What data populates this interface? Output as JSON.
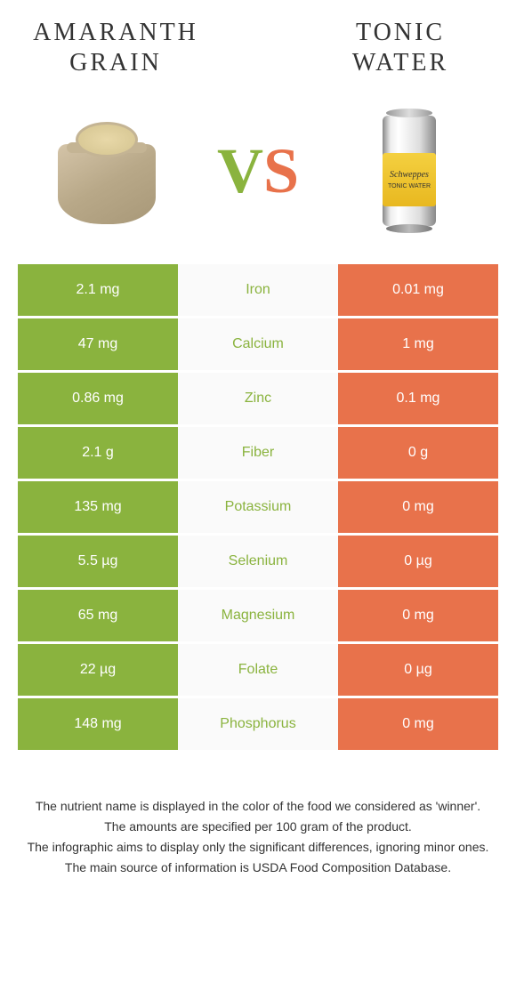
{
  "leftFood": {
    "name": "Amaranth grain",
    "color": "#8ab33e"
  },
  "rightFood": {
    "name": "Tonic water",
    "color": "#e8724b"
  },
  "canBrand": "Schweppes",
  "canText": "TONIC WATER",
  "nutrients": [
    {
      "name": "Iron",
      "left": "2.1 mg",
      "right": "0.01 mg",
      "winner": "left"
    },
    {
      "name": "Calcium",
      "left": "47 mg",
      "right": "1 mg",
      "winner": "left"
    },
    {
      "name": "Zinc",
      "left": "0.86 mg",
      "right": "0.1 mg",
      "winner": "left"
    },
    {
      "name": "Fiber",
      "left": "2.1 g",
      "right": "0 g",
      "winner": "left"
    },
    {
      "name": "Potassium",
      "left": "135 mg",
      "right": "0 mg",
      "winner": "left"
    },
    {
      "name": "Selenium",
      "left": "5.5 µg",
      "right": "0 µg",
      "winner": "left"
    },
    {
      "name": "Magnesium",
      "left": "65 mg",
      "right": "0 mg",
      "winner": "left"
    },
    {
      "name": "Folate",
      "left": "22 µg",
      "right": "0 µg",
      "winner": "left"
    },
    {
      "name": "Phosphorus",
      "left": "148 mg",
      "right": "0 mg",
      "winner": "left"
    }
  ],
  "footer": {
    "line1": "The nutrient name is displayed in the color of the food we considered as 'winner'.",
    "line2": "The amounts are specified per 100 gram of the product.",
    "line3": "The infographic aims to display only the significant differences, ignoring minor ones.",
    "line4": "The main source of information is USDA Food Composition Database."
  }
}
